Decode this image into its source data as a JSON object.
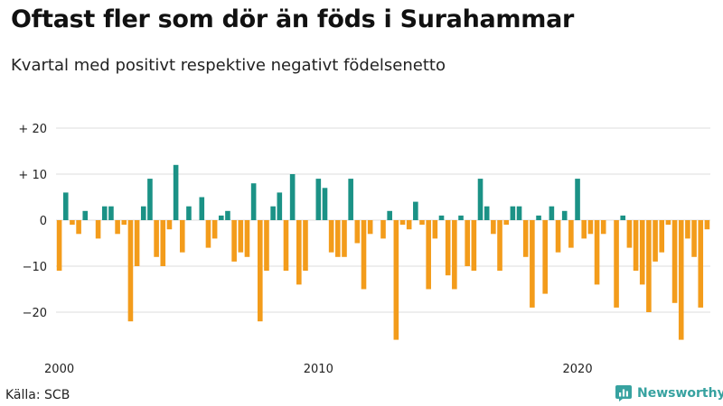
{
  "title": "Oftast fler som dör än föds i Surahammar",
  "subtitle": "Kvartal med positivt respektive negativt födelsenetto",
  "source": "Källa: SCB",
  "brand": {
    "name": "Newsworthy",
    "logo_icon": "bar-chart-logo-icon"
  },
  "colors": {
    "positive": "#1b9286",
    "negative": "#f39c1b",
    "grid": "#dddddd"
  },
  "chart_data": {
    "type": "bar",
    "x_start": "2000-Q1",
    "x_tick_labels": [
      "2000",
      "2010",
      "2020"
    ],
    "y_tick_labels": [
      "+ 20",
      "+ 10",
      "0",
      "−10",
      "−20"
    ],
    "y_ticks": [
      20,
      10,
      0,
      -10,
      -20
    ],
    "ylim": [
      -27,
      22
    ],
    "values": [
      -11,
      6,
      -1,
      -3,
      2,
      0,
      -4,
      3,
      3,
      -3,
      -1,
      -22,
      -10,
      3,
      9,
      -8,
      -10,
      -2,
      12,
      -7,
      3,
      0,
      5,
      -6,
      -4,
      1,
      2,
      -9,
      -7,
      -8,
      8,
      -22,
      -11,
      3,
      6,
      -11,
      10,
      -14,
      -11,
      0,
      9,
      7,
      -7,
      -8,
      -8,
      9,
      -5,
      -15,
      -3,
      0,
      -4,
      2,
      -26,
      -1,
      -2,
      4,
      -1,
      -15,
      -4,
      1,
      -12,
      -15,
      1,
      -10,
      -11,
      9,
      3,
      -3,
      -11,
      -1,
      3,
      3,
      -8,
      -19,
      1,
      -16,
      3,
      -7,
      2,
      -6,
      9,
      -4,
      -3,
      -14,
      -3,
      0,
      -19,
      1,
      -6,
      -11,
      -14,
      -20,
      -9,
      -7,
      -1,
      -18,
      -26,
      -4,
      -8,
      -19,
      -2
    ]
  }
}
